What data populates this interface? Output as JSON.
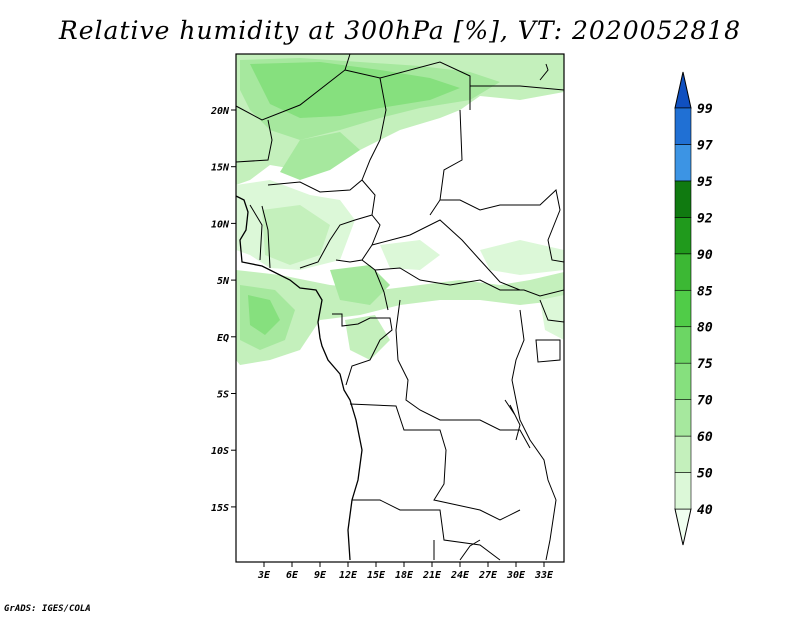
{
  "title": "Relative humidity at 300hPa [%], VT: 2020052818",
  "credit": "GrADS: IGES/COLA",
  "map": {
    "lon_ticks": [
      "3E",
      "6E",
      "9E",
      "12E",
      "15E",
      "18E",
      "21E",
      "24E",
      "27E",
      "30E",
      "33E"
    ],
    "lat_ticks": [
      "20N",
      "15N",
      "10N",
      "5N",
      "EQ",
      "5S",
      "10S",
      "15S"
    ]
  },
  "colorbar": {
    "levels": [
      "40",
      "50",
      "60",
      "70",
      "75",
      "80",
      "85",
      "90",
      "92",
      "95",
      "97",
      "99"
    ],
    "colors": [
      "#f0fff0",
      "#dcf8d8",
      "#c4f0bc",
      "#a6e89e",
      "#86e07e",
      "#6cd664",
      "#50cc48",
      "#3cb834",
      "#209a1c",
      "#107a10",
      "#3c94e4",
      "#2070d4",
      "#1050c0"
    ]
  }
}
